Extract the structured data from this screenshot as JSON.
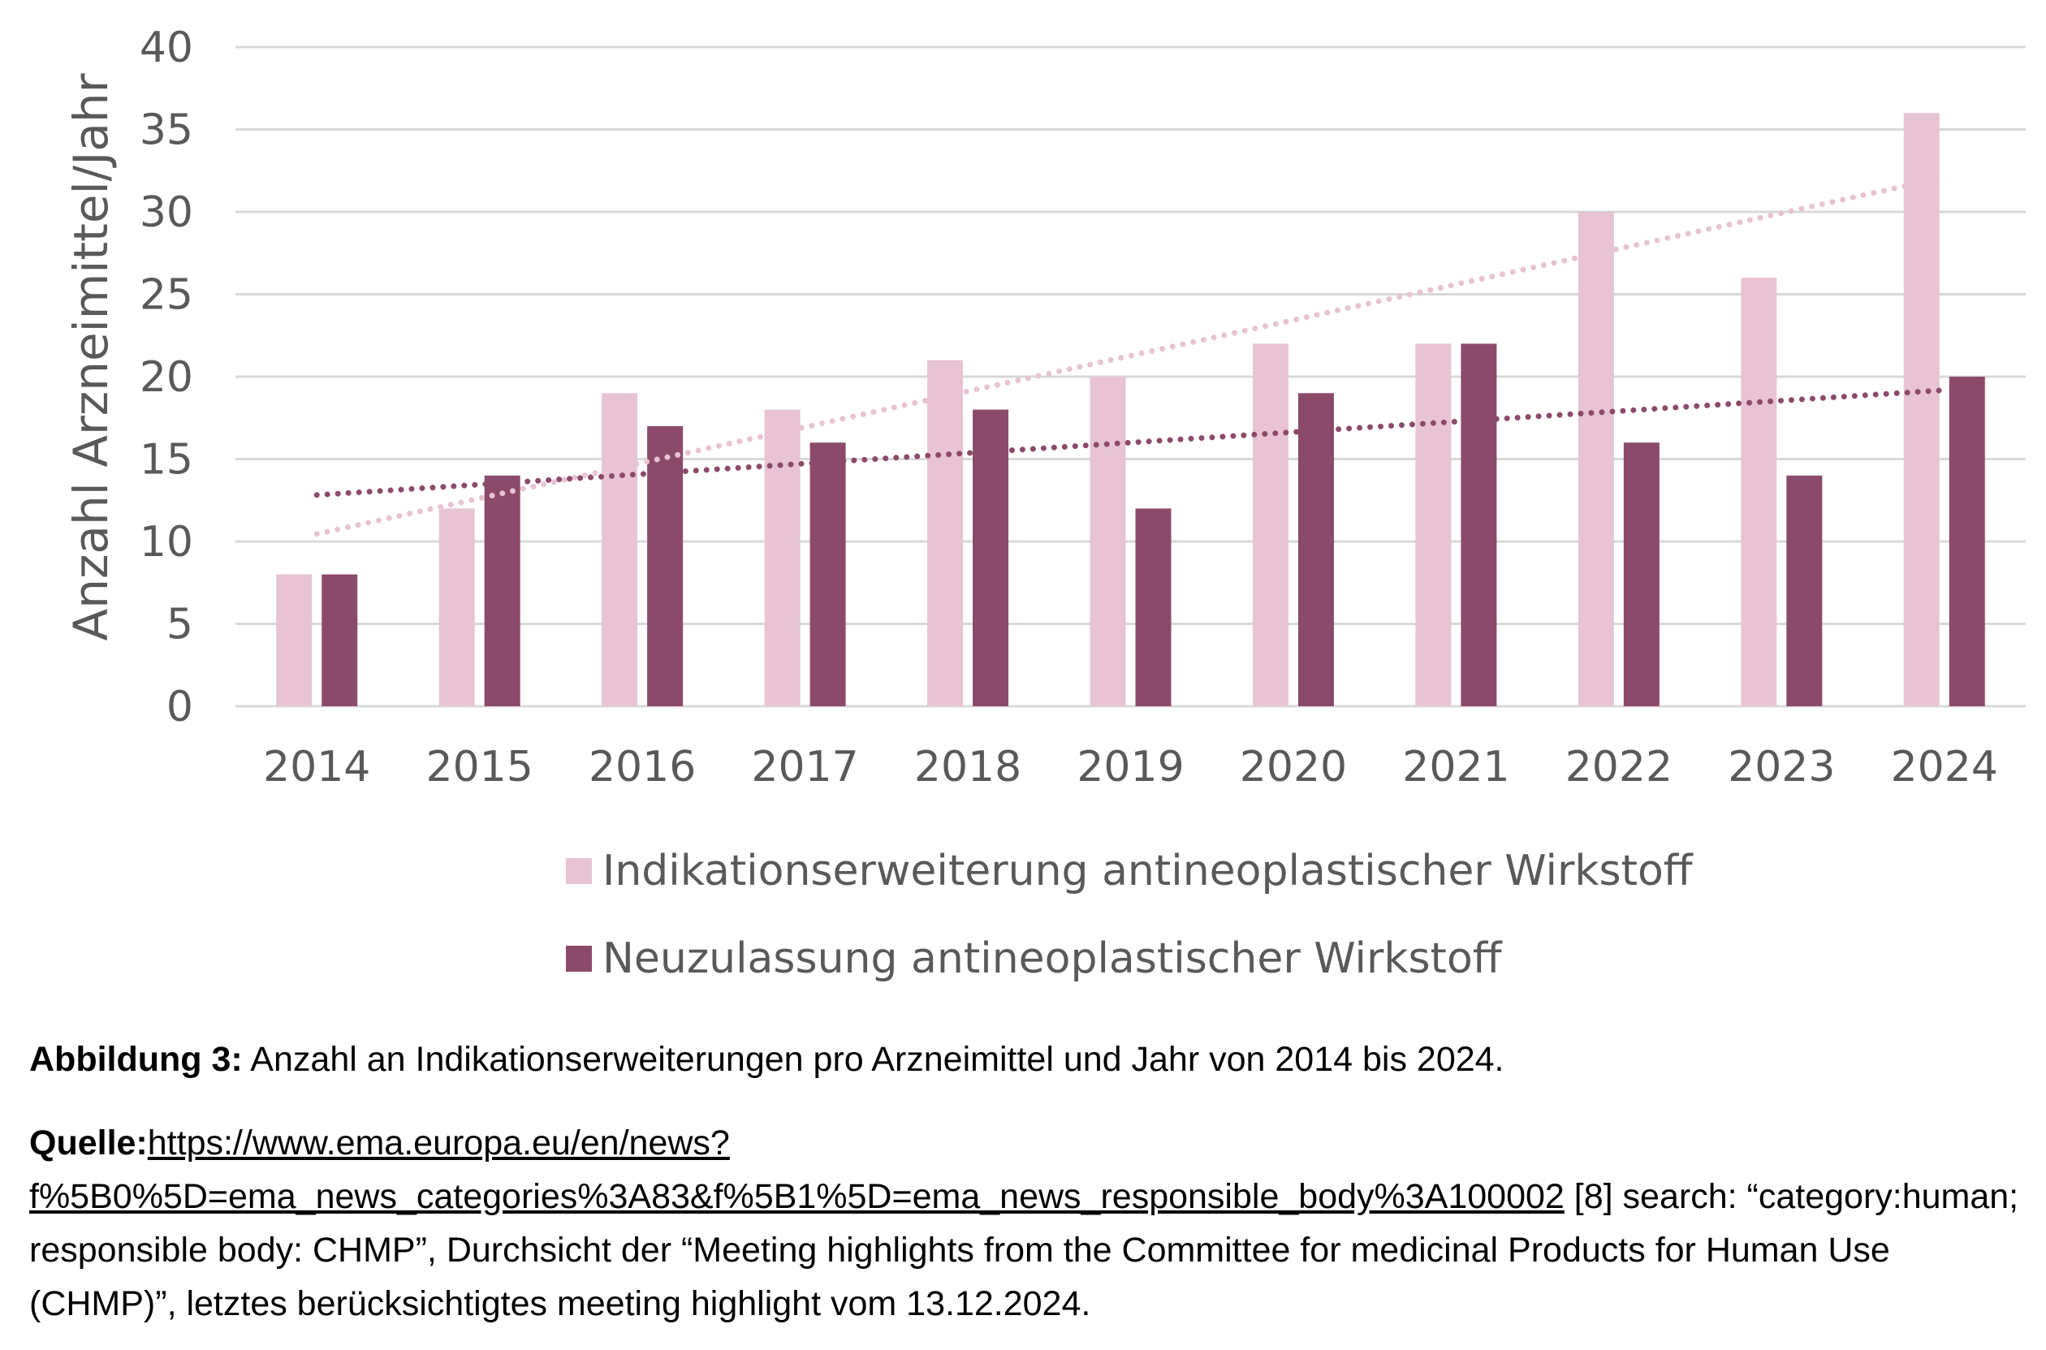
{
  "chart_data": {
    "type": "bar",
    "categories": [
      "2014",
      "2015",
      "2016",
      "2017",
      "2018",
      "2019",
      "2020",
      "2021",
      "2022",
      "2023",
      "2024"
    ],
    "series": [
      {
        "name": "Indikationserweiterung antineoplastischer Wirkstoff",
        "values": [
          8,
          12,
          19,
          18,
          21,
          20,
          22,
          22,
          30,
          26,
          36
        ],
        "color": "#e8c3d4",
        "trendline": {
          "type": "linear",
          "style": "dotted"
        }
      },
      {
        "name": "Neuzulassung antineoplastischer Wirkstoff",
        "values": [
          8,
          14,
          17,
          16,
          18,
          12,
          19,
          22,
          16,
          14,
          20
        ],
        "color": "#8c4a6b",
        "trendline": {
          "type": "linear",
          "style": "dotted"
        }
      }
    ],
    "title": "",
    "xlabel": "",
    "ylabel": "Anzahl Arzneimittel/Jahr",
    "ylim": [
      0,
      40
    ],
    "yticks": [
      "0",
      "5",
      "10",
      "15",
      "20",
      "25",
      "30",
      "35",
      "40"
    ],
    "grid": true,
    "legend_position": "bottom",
    "gridColor": "#d9d9d9"
  },
  "caption": {
    "label": "Abbildung 3:",
    "text": " Anzahl an Indikationserweiterungen pro Arzneimittel und Jahr von 2014 bis 2024."
  },
  "source": {
    "label": "Quelle:",
    "link": "https://www.ema.europa.eu/en/news?f%5B0%5D=ema_news_categories%3A83&f%5B1%5D=ema_news_responsible_body%3A100002",
    "text": " [8] search: “category:human; responsible body: CHMP”, Durchsicht der “Meeting highlights from the Committee for medicinal Products for Human Use (CHMP)”, letztes berücksichtigtes meeting highlight vom 13.12.2024."
  }
}
